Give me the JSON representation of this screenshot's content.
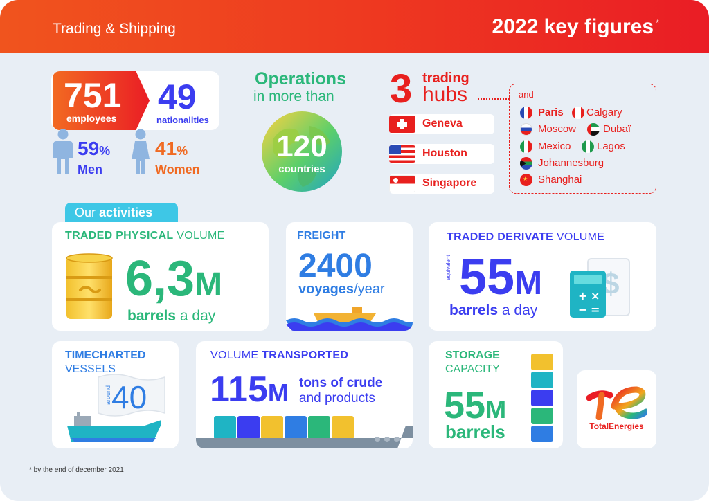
{
  "header": {
    "subtitle": "Trading & Shipping",
    "title": "2022 key figures",
    "asterisk": "*"
  },
  "people": {
    "employees_value": "751",
    "employees_label": "employees",
    "nationalities_value": "49",
    "nationalities_label": "nationalities",
    "men_pct": "59",
    "men_pct_sign": "%",
    "men_label": "Men",
    "women_pct": "41",
    "women_pct_sign": "%",
    "women_label": "Women"
  },
  "operations": {
    "line1": "Operations",
    "line2": "in more than",
    "countries_value": "120",
    "countries_label": "countries"
  },
  "hubs": {
    "count": "3",
    "line1": "trading",
    "line2": "hubs",
    "items": [
      "Geneva",
      "Houston",
      "Singapore"
    ],
    "and_label": "and",
    "offices": [
      "Paris",
      "Calgary",
      "Moscow",
      "Dubaï",
      "Mexico",
      "Lagos",
      "Johannesburg",
      "Shanghai"
    ]
  },
  "activities": {
    "tab_label_1": "Our",
    "tab_label_2": "activities"
  },
  "physical": {
    "title_bold": "TRADED PHYSICAL",
    "title_rest": "VOLUME",
    "value": "6,3",
    "unit": "M",
    "desc_bold": "barrels",
    "desc_rest": "a day"
  },
  "freight": {
    "title": "FREIGHT",
    "value": "2400",
    "desc_bold": "voyages",
    "desc_rest": "/year"
  },
  "derivate": {
    "title_bold": "TRADED DERIVATE",
    "title_rest": "VOLUME",
    "qualifier": "equivalent",
    "value": "55",
    "unit": "M",
    "desc_bold": "barrels",
    "desc_rest": "a day"
  },
  "timecharted": {
    "line1": "TIMECHARTED",
    "line2": "VESSELS",
    "qualifier": "around",
    "value": "40"
  },
  "transported": {
    "title_rest": "VOLUME",
    "title_bold": "TRANSPORTED",
    "value": "115",
    "unit": "M",
    "desc_line1": "tons of crude",
    "desc_line2": "and products"
  },
  "storage": {
    "line1": "STORAGE",
    "line2": "CAPACITY",
    "value": "55",
    "unit": "M",
    "desc": "barrels"
  },
  "brand": {
    "name": "TotalEnergies"
  },
  "footnote": "* by the end of december 2021",
  "colors": {
    "red": "#e8201e",
    "orange": "#f06a22",
    "teal": "#2bb77a",
    "blue": "#3b3df0",
    "light_blue": "#2f7de3",
    "background": "#e8eef5"
  },
  "icons": [
    "person-icon",
    "globe-icon",
    "switzerland-flag-icon",
    "usa-flag-icon",
    "singapore-flag-icon",
    "france-flag-icon",
    "canada-flag-icon",
    "russia-flag-icon",
    "uae-flag-icon",
    "mexico-flag-icon",
    "nigeria-flag-icon",
    "south-africa-flag-icon",
    "china-flag-icon",
    "barrel-icon",
    "tanker-ship-icon",
    "calculator-icon",
    "dollar-icon",
    "flag-icon",
    "stacked-barrels-icon",
    "totalenergies-logo"
  ]
}
